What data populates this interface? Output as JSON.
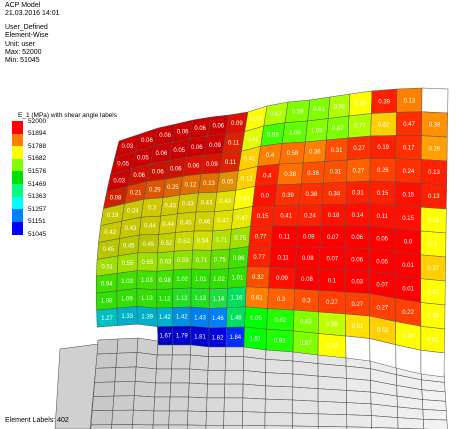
{
  "info": {
    "model": "ACP Model",
    "datetime": "21.03.2016 14:01",
    "definition": "User_Defined",
    "mode": "Element-Wise",
    "unit": "Unit: user",
    "max": "Max: 52000",
    "min": "Min: 51045"
  },
  "legend": {
    "title": "E_1 (MPa) with shear angle labels",
    "entries": [
      {
        "label": "52000",
        "color": "#ff0000"
      },
      {
        "label": "51894",
        "color": "#ff7f00"
      },
      {
        "label": "51788",
        "color": "#ffff00"
      },
      {
        "label": "51682",
        "color": "#7fff00"
      },
      {
        "label": "51576",
        "color": "#00e000"
      },
      {
        "label": "51469",
        "color": "#00ff7f"
      },
      {
        "label": "51363",
        "color": "#00ffff"
      },
      {
        "label": "51257",
        "color": "#007fff"
      },
      {
        "label": "51151",
        "color": "#0000ff"
      },
      {
        "label": "51045",
        "color": ""
      }
    ]
  },
  "footer": "Element Labels: 402",
  "mesh": {
    "rows": [
      {
        "colors": [
          "#cc0000",
          "#cc0000",
          "#cc0000",
          "#cc0000",
          "#cc0000",
          "#cc0000",
          "#dd1100",
          "#ffff00",
          "#b0ff00",
          "#80ff00",
          "#80ff00",
          "#b0ff00",
          "#ffff00",
          "#ff2000",
          "#ff7f00",
          "#ffffff"
        ],
        "labels": [
          "0.03",
          "0.06",
          "0.06",
          "0.06",
          "0.06",
          "0.06",
          "0.09",
          "0.23",
          "0.67",
          "0.59",
          "0.61",
          "0.58",
          "0.49",
          "0.39",
          "0.13",
          "0.36"
        ]
      },
      {
        "colors": [
          "#cc0000",
          "#cc0000",
          "#cc0000",
          "#cc0000",
          "#cc0000",
          "#cc0000",
          "#dd2200",
          "#e0ff00",
          "#40ff00",
          "#60ff00",
          "#80ff00",
          "#80ff00",
          "#b0ff00",
          "#ffd000",
          "#ff3000",
          "#ff9000"
        ],
        "labels": [
          "0.05",
          "0.05",
          "0.06",
          "0.05",
          "0.06",
          "0.09",
          "0.11",
          "0.41",
          "0.98",
          "1.09",
          "1.03",
          "0.87",
          "0.77",
          "0.62",
          "0.47",
          "0.38"
        ]
      },
      {
        "colors": [
          "#cc0000",
          "#cc1100",
          "#cc1100",
          "#cc1100",
          "#dd1100",
          "#dd1100",
          "#dd2200",
          "#ffd000",
          "#ff8000",
          "#ff7000",
          "#ff8000",
          "#ff5000",
          "#ff3000",
          "#ff2000",
          "#ff3000",
          "#ffa000"
        ],
        "labels": [
          "0.03",
          "0.06",
          "0.06",
          "0.06",
          "0.06",
          "0.09",
          "0.11",
          "0.41",
          "0.4",
          "0.58",
          "0.36",
          "0.31",
          "0.27",
          "0.19",
          "0.17",
          "0.26"
        ]
      },
      {
        "colors": [
          "#cc2200",
          "#dd4400",
          "#dd5500",
          "#dd6600",
          "#e07000",
          "#e07000",
          "#e09000",
          "#ffd000",
          "#ff2000",
          "#ff7000",
          "#ff5000",
          "#ff5000",
          "#ff6000",
          "#ff4000",
          "#ff3000",
          "#ff2000"
        ],
        "labels": [
          "0.08",
          "0.21",
          "0.29",
          "0.25",
          "0.12",
          "0.13",
          "0.05",
          "0.12",
          "0.4",
          "0.38",
          "0.36",
          "0.31",
          "0.27",
          "0.26",
          "0.24",
          "0.13"
        ]
      },
      {
        "colors": [
          "#c8c800",
          "#c8c800",
          "#d0c800",
          "#d0c800",
          "#d0c800",
          "#d0c800",
          "#e0e000",
          "#ffff00",
          "#ff1000",
          "#ff3000",
          "#ff3000",
          "#ff3000",
          "#ff2000",
          "#ff2000",
          "#ff1000",
          "#ff2000"
        ],
        "labels": [
          "0.19",
          "0.24",
          "0.3",
          "0.43",
          "0.43",
          "0.43",
          "0.43",
          "0.44",
          "0.0",
          "0.39",
          "0.38",
          "0.34",
          "0.31",
          "0.15",
          "0.15",
          "0.13"
        ]
      },
      {
        "colors": [
          "#c8c800",
          "#c8c800",
          "#c8c800",
          "#d0d000",
          "#d0d000",
          "#d0d000",
          "#e0e000",
          "#e8e800",
          "#ff2000",
          "#ff2000",
          "#ff2000",
          "#ff1000",
          "#ff1000",
          "#ff1000",
          "#ff1000",
          "#ffff00"
        ],
        "labels": [
          "0.42",
          "0.43",
          "0.44",
          "0.44",
          "0.45",
          "0.46",
          "0.47",
          "0.47",
          "0.15",
          "0.41",
          "0.24",
          "0.18",
          "0.14",
          "0.11",
          "0.15",
          "0.13"
        ]
      },
      {
        "colors": [
          "#b8c800",
          "#b8c800",
          "#b8c800",
          "#c0d000",
          "#c8d800",
          "#d0e000",
          "#b0e000",
          "#a0e000",
          "#ff2000",
          "#ff0000",
          "#ff0000",
          "#ff0000",
          "#ff0000",
          "#ff0000",
          "#ff0000",
          "#ffff00"
        ],
        "labels": [
          "0.45",
          "0.45",
          "0.45",
          "0.52",
          "0.52",
          "0.54",
          "0.71",
          "0.75",
          "0.77",
          "0.11",
          "0.08",
          "0.07",
          "0.06",
          "0.05",
          "0.0",
          "0.1"
        ]
      },
      {
        "colors": [
          "#a0e000",
          "#a0e000",
          "#a0e000",
          "#90e000",
          "#90e000",
          "#80e000",
          "#60e000",
          "#40e000",
          "#ff2000",
          "#ff0000",
          "#ff0000",
          "#ff0000",
          "#ff0000",
          "#ff0000",
          "#ff0000",
          "#ffd000"
        ],
        "labels": [
          "0.51",
          "0.55",
          "0.65",
          "0.63",
          "0.59",
          "0.71",
          "0.75",
          "0.86",
          "0.77",
          "0.11",
          "0.08",
          "0.07",
          "0.06",
          "0.05",
          "0.01",
          "0.37"
        ]
      },
      {
        "colors": [
          "#40e000",
          "#40e000",
          "#40e000",
          "#40e000",
          "#30e000",
          "#30e000",
          "#30e000",
          "#30e000",
          "#ff5000",
          "#ff1000",
          "#ff0000",
          "#ff0000",
          "#ff0000",
          "#ff0000",
          "#ff0000",
          "#ffff00"
        ],
        "labels": [
          "0.94",
          "1.03",
          "1.03",
          "0.98",
          "1.02",
          "1.01",
          "1.02",
          "1.01",
          "0.32",
          "0.09",
          "0.08",
          "0.1",
          "0.03",
          "0.07",
          "0.01",
          "0.37"
        ]
      },
      {
        "colors": [
          "#30e000",
          "#30e000",
          "#30e000",
          "#20e000",
          "#20e020",
          "#20e020",
          "#20e040",
          "#00e060",
          "#ff8000",
          "#ff6000",
          "#ff5000",
          "#ff4000",
          "#ff4000",
          "#ff4000",
          "#ff4000",
          "#ffff00"
        ],
        "labels": [
          "1.08",
          "1.09",
          "1.13",
          "1.12",
          "1.12",
          "1.13",
          "1.14",
          "1.16",
          "0.61",
          "0.3",
          "0.3",
          "0.27",
          "0.27",
          "0.27",
          "0.22",
          "0.42"
        ]
      },
      {
        "colors": [
          "#00c0c0",
          "#00b0c8",
          "#00b0c8",
          "#00b0d0",
          "#0090e0",
          "#0080f0",
          "#0080ff",
          "#00e060",
          "#00ff00",
          "#20ff00",
          "#80ff00",
          "#c0ff00",
          "#ffe000",
          "#ffd000",
          "#ffff00",
          "#ffff00"
        ],
        "labels": [
          "1.27",
          "1.33",
          "1.39",
          "1.42",
          "1.42",
          "1.43",
          "1.46",
          "1.48",
          "1.05",
          "0.62",
          "0.63",
          "0.58",
          "0.51",
          "0.52",
          "0.39",
          "0.61"
        ]
      },
      {
        "colors": [
          "",
          "",
          "",
          "#0000c0",
          "#0000d0",
          "#0000d0",
          "#0000e0",
          "#0030ff",
          "#00ff00",
          "#20ff00",
          "#80ff00",
          "#ffff00",
          "#ffffff",
          "#ffffff",
          "#ffffff",
          "#ffffff"
        ],
        "labels": [
          "",
          "",
          "",
          "1.67",
          "1.79",
          "1.81",
          "1.82",
          "1.84",
          "1.51",
          "0.91",
          "0.87",
          "0.73",
          "0.51",
          "",
          "",
          ""
        ]
      }
    ]
  }
}
